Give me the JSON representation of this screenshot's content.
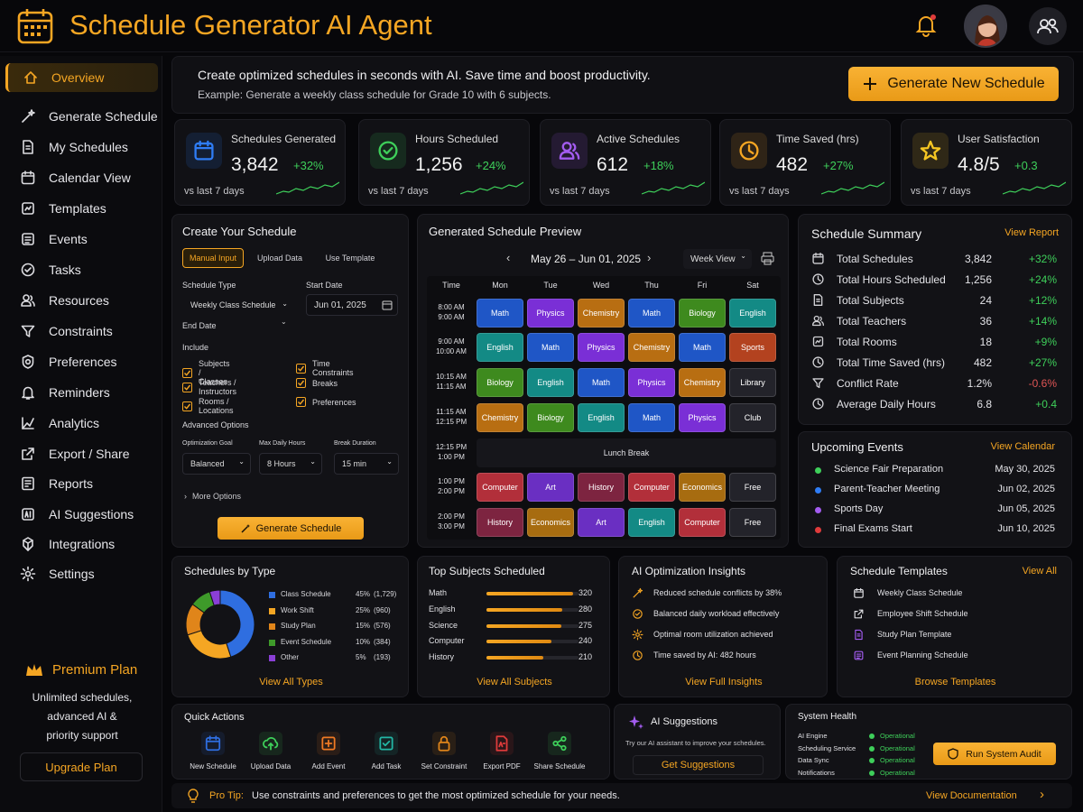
{
  "app": {
    "title": "Schedule Generator AI Agent"
  },
  "sidebar": {
    "items": [
      {
        "label": "Overview",
        "icon": "home-icon",
        "active": true
      },
      {
        "label": "Generate Schedule",
        "icon": "magic-wand-icon"
      },
      {
        "label": "My Schedules",
        "icon": "document-icon"
      },
      {
        "label": "Calendar View",
        "icon": "calendar-icon"
      },
      {
        "label": "Templates",
        "icon": "template-icon"
      },
      {
        "label": "Events",
        "icon": "events-icon"
      },
      {
        "label": "Tasks",
        "icon": "check-circle-icon"
      },
      {
        "label": "Resources",
        "icon": "people-icon"
      },
      {
        "label": "Constraints",
        "icon": "filter-icon"
      },
      {
        "label": "Preferences",
        "icon": "gear-badge-icon"
      },
      {
        "label": "Reminders",
        "icon": "bell-icon"
      },
      {
        "label": "Analytics",
        "icon": "analytics-icon"
      },
      {
        "label": "Export / Share",
        "icon": "export-icon"
      },
      {
        "label": "Reports",
        "icon": "reports-icon"
      },
      {
        "label": "AI Suggestions",
        "icon": "ai-icon"
      },
      {
        "label": "Integrations",
        "icon": "integrations-icon"
      },
      {
        "label": "Settings",
        "icon": "settings-icon"
      }
    ],
    "premium": {
      "title": "Premium Plan",
      "desc_1": "Unlimited schedules,",
      "desc_2": "advanced AI &",
      "desc_3": "priority support",
      "upgrade": "Upgrade Plan"
    }
  },
  "banner": {
    "headline": "Create optimized schedules in seconds with AI. Save time and boost productivity.",
    "example": "Example: Generate a weekly class schedule for Grade 10 with 6 subjects.",
    "button": "Generate New Schedule"
  },
  "stats": [
    {
      "label": "Schedules Generated",
      "value": "3,842",
      "delta": "+32%",
      "vs": "vs last 7 days",
      "color": "#2f7df6",
      "icon": "calendar-icon"
    },
    {
      "label": "Hours Scheduled",
      "value": "1,256",
      "delta": "+24%",
      "vs": "vs last 7 days",
      "color": "#3ecf5a",
      "icon": "check-circle-icon"
    },
    {
      "label": "Active Schedules",
      "value": "612",
      "delta": "+18%",
      "vs": "vs last 7 days",
      "color": "#a35cf0",
      "icon": "people-icon"
    },
    {
      "label": "Time Saved (hrs)",
      "value": "482",
      "delta": "+27%",
      "vs": "vs last 7 days",
      "color": "#f5a623",
      "icon": "clock-icon"
    },
    {
      "label": "User Satisfaction",
      "value": "4.8/5",
      "delta": "+0.3",
      "vs": "vs last 7 days",
      "color": "#f5c623",
      "icon": "star-icon"
    }
  ],
  "create": {
    "title": "Create Your Schedule",
    "tabs": [
      "Manual Input",
      "Upload Data",
      "Use Template"
    ],
    "schedule_type_label": "Schedule Type",
    "schedule_type_value": "Weekly Class Schedule",
    "start_date_label": "Start Date",
    "start_date_value": "Jun 01, 2025",
    "end_date_label": "End Date",
    "include_label": "Include",
    "include": [
      "Subjects / Classes",
      "Time Constraints",
      "Teachers / Instructors",
      "Breaks",
      "Rooms / Locations",
      "Preferences"
    ],
    "advanced_label": "Advanced Options",
    "goal_label": "Optimization Goal",
    "goal_value": "Balanced",
    "max_hours_label": "Max Daily Hours",
    "max_hours_value": "8 Hours",
    "break_label": "Break Duration",
    "break_value": "15 min",
    "more_options": "More Options",
    "generate": "Generate Schedule"
  },
  "preview": {
    "title": "Generated Schedule Preview",
    "range": "May 26 – Jun 01, 2025",
    "view": "Week View",
    "time_header": "Time",
    "days": [
      "Mon",
      "Tue",
      "Wed",
      "Thu",
      "Fri",
      "Sat"
    ],
    "times": [
      [
        "8:00 AM",
        "9:00 AM"
      ],
      [
        "9:00 AM",
        "10:00 AM"
      ],
      [
        "10:15 AM",
        "11:15 AM"
      ],
      [
        "11:15 AM",
        "12:15 PM"
      ],
      [
        "12:15 PM",
        "1:00 PM"
      ],
      [
        "1:00 PM",
        "2:00 PM"
      ],
      [
        "2:00 PM",
        "3:00 PM"
      ]
    ],
    "rows": [
      [
        "Math",
        "Physics",
        "Chemistry",
        "Math",
        "Biology",
        "English"
      ],
      [
        "English",
        "Math",
        "Physics",
        "Chemistry",
        "Math",
        "Sports"
      ],
      [
        "Biology",
        "English",
        "Math",
        "Physics",
        "Chemistry",
        "Library"
      ],
      [
        "Chemistry",
        "Biology",
        "English",
        "Math",
        "Physics",
        "Club"
      ],
      null,
      [
        "Computer",
        "Art",
        "History",
        "Computer",
        "Economics",
        "Free"
      ],
      [
        "History",
        "Economics",
        "Art",
        "English",
        "Computer",
        "Free"
      ]
    ],
    "lunch": "Lunch Break",
    "subject_colors": {
      "Math": "#1f56c6",
      "Physics": "#7a2fd6",
      "Chemistry": "#b86e12",
      "Biology": "#3e8a1e",
      "English": "#138a85",
      "Sports": "#b3421f",
      "Library": "#23232a",
      "Club": "#23232a",
      "Computer": "#b22f3a",
      "Art": "#6a2fc2",
      "History": "#7d2440",
      "Economics": "#a76c10",
      "Free": "#23232a"
    }
  },
  "summary": {
    "title": "Schedule Summary",
    "link": "View Report",
    "rows": [
      {
        "label": "Total Schedules",
        "value": "3,842",
        "delta": "+32%",
        "pos": true
      },
      {
        "label": "Total Hours Scheduled",
        "value": "1,256",
        "delta": "+24%",
        "pos": true
      },
      {
        "label": "Total Subjects",
        "value": "24",
        "delta": "+12%",
        "pos": true
      },
      {
        "label": "Total Teachers",
        "value": "36",
        "delta": "+14%",
        "pos": true
      },
      {
        "label": "Total Rooms",
        "value": "18",
        "delta": "+9%",
        "pos": true
      },
      {
        "label": "Total Time Saved (hrs)",
        "value": "482",
        "delta": "+27%",
        "pos": true
      },
      {
        "label": "Conflict Rate",
        "value": "1.2%",
        "delta": "-0.6%",
        "pos": false
      },
      {
        "label": "Average Daily Hours",
        "value": "6.8",
        "delta": "+0.4",
        "pos": true
      }
    ]
  },
  "events": {
    "title": "Upcoming Events",
    "link": "View Calendar",
    "items": [
      {
        "name": "Science Fair Preparation",
        "date": "May 30, 2025",
        "color": "#3ecf5a"
      },
      {
        "name": "Parent-Teacher Meeting",
        "date": "Jun 02, 2025",
        "color": "#2f7df6"
      },
      {
        "name": "Sports Day",
        "date": "Jun 05, 2025",
        "color": "#a35cf0"
      },
      {
        "name": "Final Exams Start",
        "date": "Jun 10, 2025",
        "color": "#e03b3b"
      }
    ]
  },
  "by_type": {
    "title": "Schedules by Type",
    "link": "View All Types",
    "items": [
      {
        "name": "Class Schedule",
        "pct": "45%",
        "count": "(1,729)",
        "value": 45,
        "color": "#2f6ee0"
      },
      {
        "name": "Work Shift",
        "pct": "25%",
        "count": "(960)",
        "value": 25,
        "color": "#f5a623"
      },
      {
        "name": "Study Plan",
        "pct": "15%",
        "count": "(576)",
        "value": 15,
        "color": "#e0851a"
      },
      {
        "name": "Event Schedule",
        "pct": "10%",
        "count": "(384)",
        "value": 10,
        "color": "#3e9a2a"
      },
      {
        "name": "Other",
        "pct": "5%",
        "count": "(193)",
        "value": 5,
        "color": "#8a3fd6"
      }
    ]
  },
  "top_subjects": {
    "title": "Top Subjects Scheduled",
    "link": "View All Subjects",
    "items": [
      {
        "name": "Math",
        "value": 320
      },
      {
        "name": "English",
        "value": 280
      },
      {
        "name": "Science",
        "value": 275
      },
      {
        "name": "Computer",
        "value": 240
      },
      {
        "name": "History",
        "value": 210
      }
    ]
  },
  "insights": {
    "title": "AI Optimization Insights",
    "link": "View Full Insights",
    "items": [
      "Reduced schedule conflicts by 38%",
      "Balanced daily workload effectively",
      "Optimal room utilization achieved",
      "Time saved by AI: 482 hours"
    ]
  },
  "templates": {
    "title": "Schedule Templates",
    "link": "View All",
    "items": [
      "Weekly Class Schedule",
      "Employee Shift Schedule",
      "Study Plan Template",
      "Event Planning Schedule"
    ],
    "browse": "Browse Templates"
  },
  "quick_actions": {
    "title": "Quick Actions",
    "items": [
      {
        "label": "New Schedule",
        "color": "#2f6ee0",
        "icon": "calendar-icon"
      },
      {
        "label": "Upload Data",
        "color": "#3ecf5a",
        "icon": "cloud-upload-icon"
      },
      {
        "label": "Add Event",
        "color": "#f07a23",
        "icon": "plus-box-icon"
      },
      {
        "label": "Add Task",
        "color": "#23b6a5",
        "icon": "task-icon"
      },
      {
        "label": "Set Constraint",
        "color": "#e0851a",
        "icon": "lock-icon"
      },
      {
        "label": "Export PDF",
        "color": "#e03b3b",
        "icon": "pdf-icon"
      },
      {
        "label": "Share Schedule",
        "color": "#3ecf5a",
        "icon": "share-icon"
      }
    ]
  },
  "ai_suggestions": {
    "title": "AI Suggestions",
    "desc": "Try our AI assistant to improve your schedules.",
    "button": "Get Suggestions"
  },
  "health": {
    "title": "System Health",
    "items": [
      {
        "name": "AI Engine",
        "status": "Operational"
      },
      {
        "name": "Scheduling Service",
        "status": "Operational"
      },
      {
        "name": "Data Sync",
        "status": "Operational"
      },
      {
        "name": "Notifications",
        "status": "Operational"
      }
    ],
    "button": "Run System Audit"
  },
  "tip": {
    "label": "Pro Tip:",
    "text": "Use constraints and preferences to get the most optimized schedule for your needs.",
    "link": "View Documentation"
  }
}
